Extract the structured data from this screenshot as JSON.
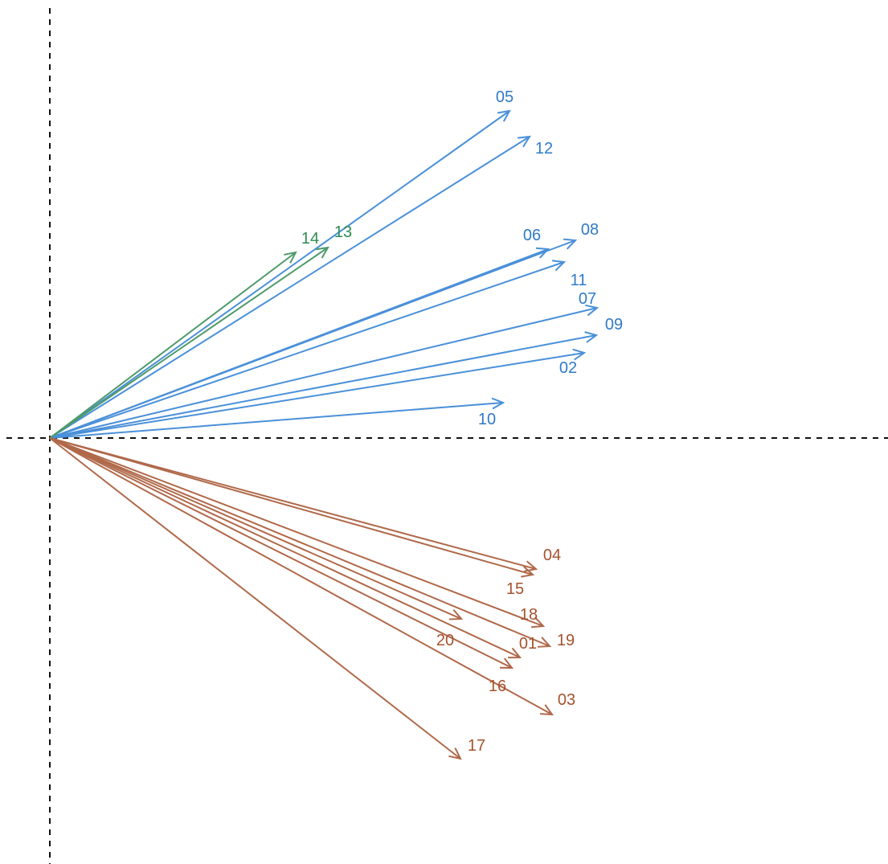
{
  "chart_data": {
    "type": "vector",
    "title": "",
    "xlabel": "",
    "ylabel": "",
    "xlim": [
      -0.05,
      1.0
    ],
    "ylim": [
      -0.5,
      0.5
    ],
    "grid": false,
    "origin_lines": "dashed",
    "groups": [
      {
        "color": "#4a90d9",
        "label_color": "#2f7ac8"
      },
      {
        "color": "#b0694a",
        "label_color": "#a5522e"
      },
      {
        "color": "#4e9a6a",
        "label_color": "#2e8a52"
      }
    ],
    "vectors": [
      {
        "label": "05",
        "group": 0,
        "x": 0.572,
        "y": 0.407
      },
      {
        "label": "12",
        "group": 0,
        "x": 0.597,
        "y": 0.375
      },
      {
        "label": "08",
        "group": 0,
        "x": 0.654,
        "y": 0.246
      },
      {
        "label": "06",
        "group": 0,
        "x": 0.62,
        "y": 0.235
      },
      {
        "label": "11",
        "group": 0,
        "x": 0.64,
        "y": 0.219
      },
      {
        "label": "07",
        "group": 0,
        "x": 0.681,
        "y": 0.162
      },
      {
        "label": "09",
        "group": 0,
        "x": 0.68,
        "y": 0.128
      },
      {
        "label": "02",
        "group": 0,
        "x": 0.665,
        "y": 0.106
      },
      {
        "label": "10",
        "group": 0,
        "x": 0.564,
        "y": 0.044
      },
      {
        "label": "14",
        "group": 2,
        "x": 0.306,
        "y": 0.231
      },
      {
        "label": "13",
        "group": 2,
        "x": 0.346,
        "y": 0.237
      },
      {
        "label": "04",
        "group": 1,
        "x": 0.605,
        "y": -0.163
      },
      {
        "label": "15",
        "group": 1,
        "x": 0.601,
        "y": -0.17
      },
      {
        "label": "18",
        "group": 1,
        "x": 0.614,
        "y": -0.234
      },
      {
        "label": "19",
        "group": 1,
        "x": 0.622,
        "y": -0.259
      },
      {
        "label": "20",
        "group": 1,
        "x": 0.512,
        "y": -0.225
      },
      {
        "label": "01",
        "group": 1,
        "x": 0.585,
        "y": -0.273
      },
      {
        "label": "16",
        "group": 1,
        "x": 0.575,
        "y": -0.286
      },
      {
        "label": "03",
        "group": 1,
        "x": 0.625,
        "y": -0.344
      },
      {
        "label": "17",
        "group": 1,
        "x": 0.511,
        "y": -0.399
      }
    ]
  }
}
